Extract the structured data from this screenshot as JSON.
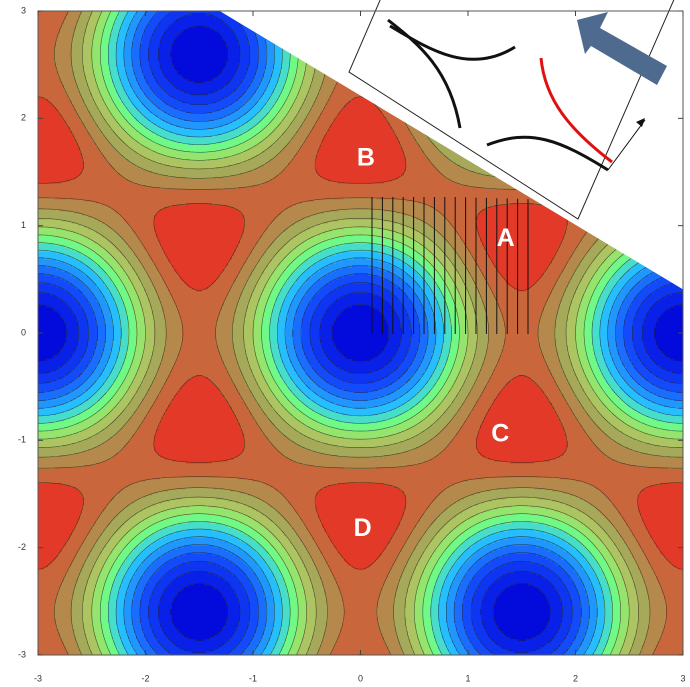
{
  "chart_data": {
    "type": "contour",
    "xlim": [
      -3,
      3
    ],
    "ylim": [
      -3,
      3
    ],
    "xticks": [
      -3,
      -2,
      -1,
      0,
      1,
      2,
      3
    ],
    "yticks": [
      -3,
      -2,
      -1,
      0,
      1,
      2,
      3
    ],
    "annotations": [
      {
        "text": "A",
        "x": 1.35,
        "y": 0.87
      },
      {
        "text": "B",
        "x": 0.05,
        "y": 1.62
      },
      {
        "text": "C",
        "x": 1.3,
        "y": -0.95
      },
      {
        "text": "D",
        "x": 0.02,
        "y": -1.83
      }
    ]
  }
}
